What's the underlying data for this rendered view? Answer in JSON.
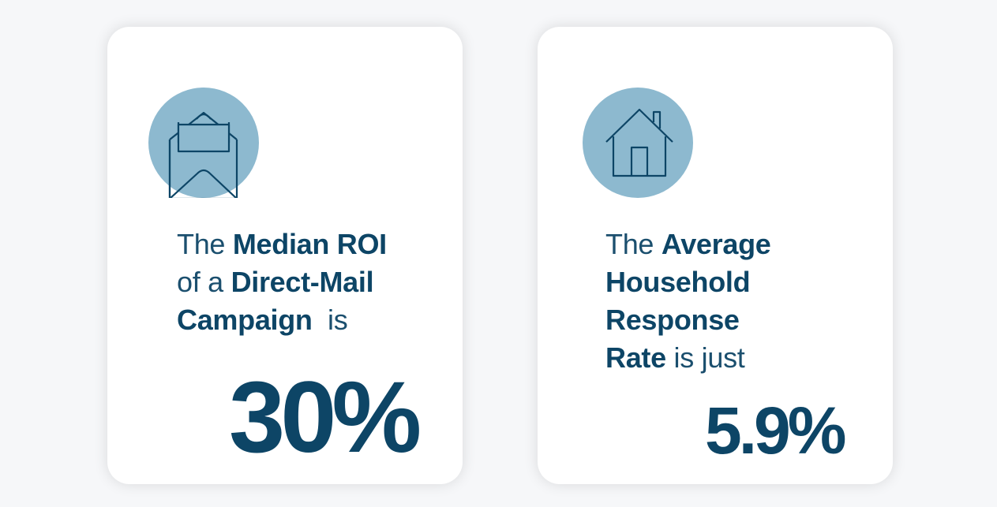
{
  "colors": {
    "accent": "#0d4566",
    "circle": "#8db9cf",
    "card": "#ffffff",
    "background": "#f6f7f9"
  },
  "cards": [
    {
      "icon": "envelope-open-icon",
      "lines": [
        [
          {
            "t": "The ",
            "bold": false
          },
          {
            "t": "Median ROI",
            "bold": true
          }
        ],
        [
          {
            "t": "of a ",
            "bold": false
          },
          {
            "t": "Direct-Mail",
            "bold": true
          }
        ],
        [
          {
            "t": "Campaign",
            "bold": true
          },
          {
            "t": "  is",
            "bold": false
          }
        ]
      ],
      "stat": "30%"
    },
    {
      "icon": "house-icon",
      "lines": [
        [
          {
            "t": "The ",
            "bold": false
          },
          {
            "t": "Average",
            "bold": true
          }
        ],
        [
          {
            "t": "Household",
            "bold": true
          }
        ],
        [
          {
            "t": "Response",
            "bold": true
          }
        ],
        [
          {
            "t": "Rate",
            "bold": true
          },
          {
            "t": " is just",
            "bold": false
          }
        ]
      ],
      "stat": "5.9%"
    }
  ]
}
